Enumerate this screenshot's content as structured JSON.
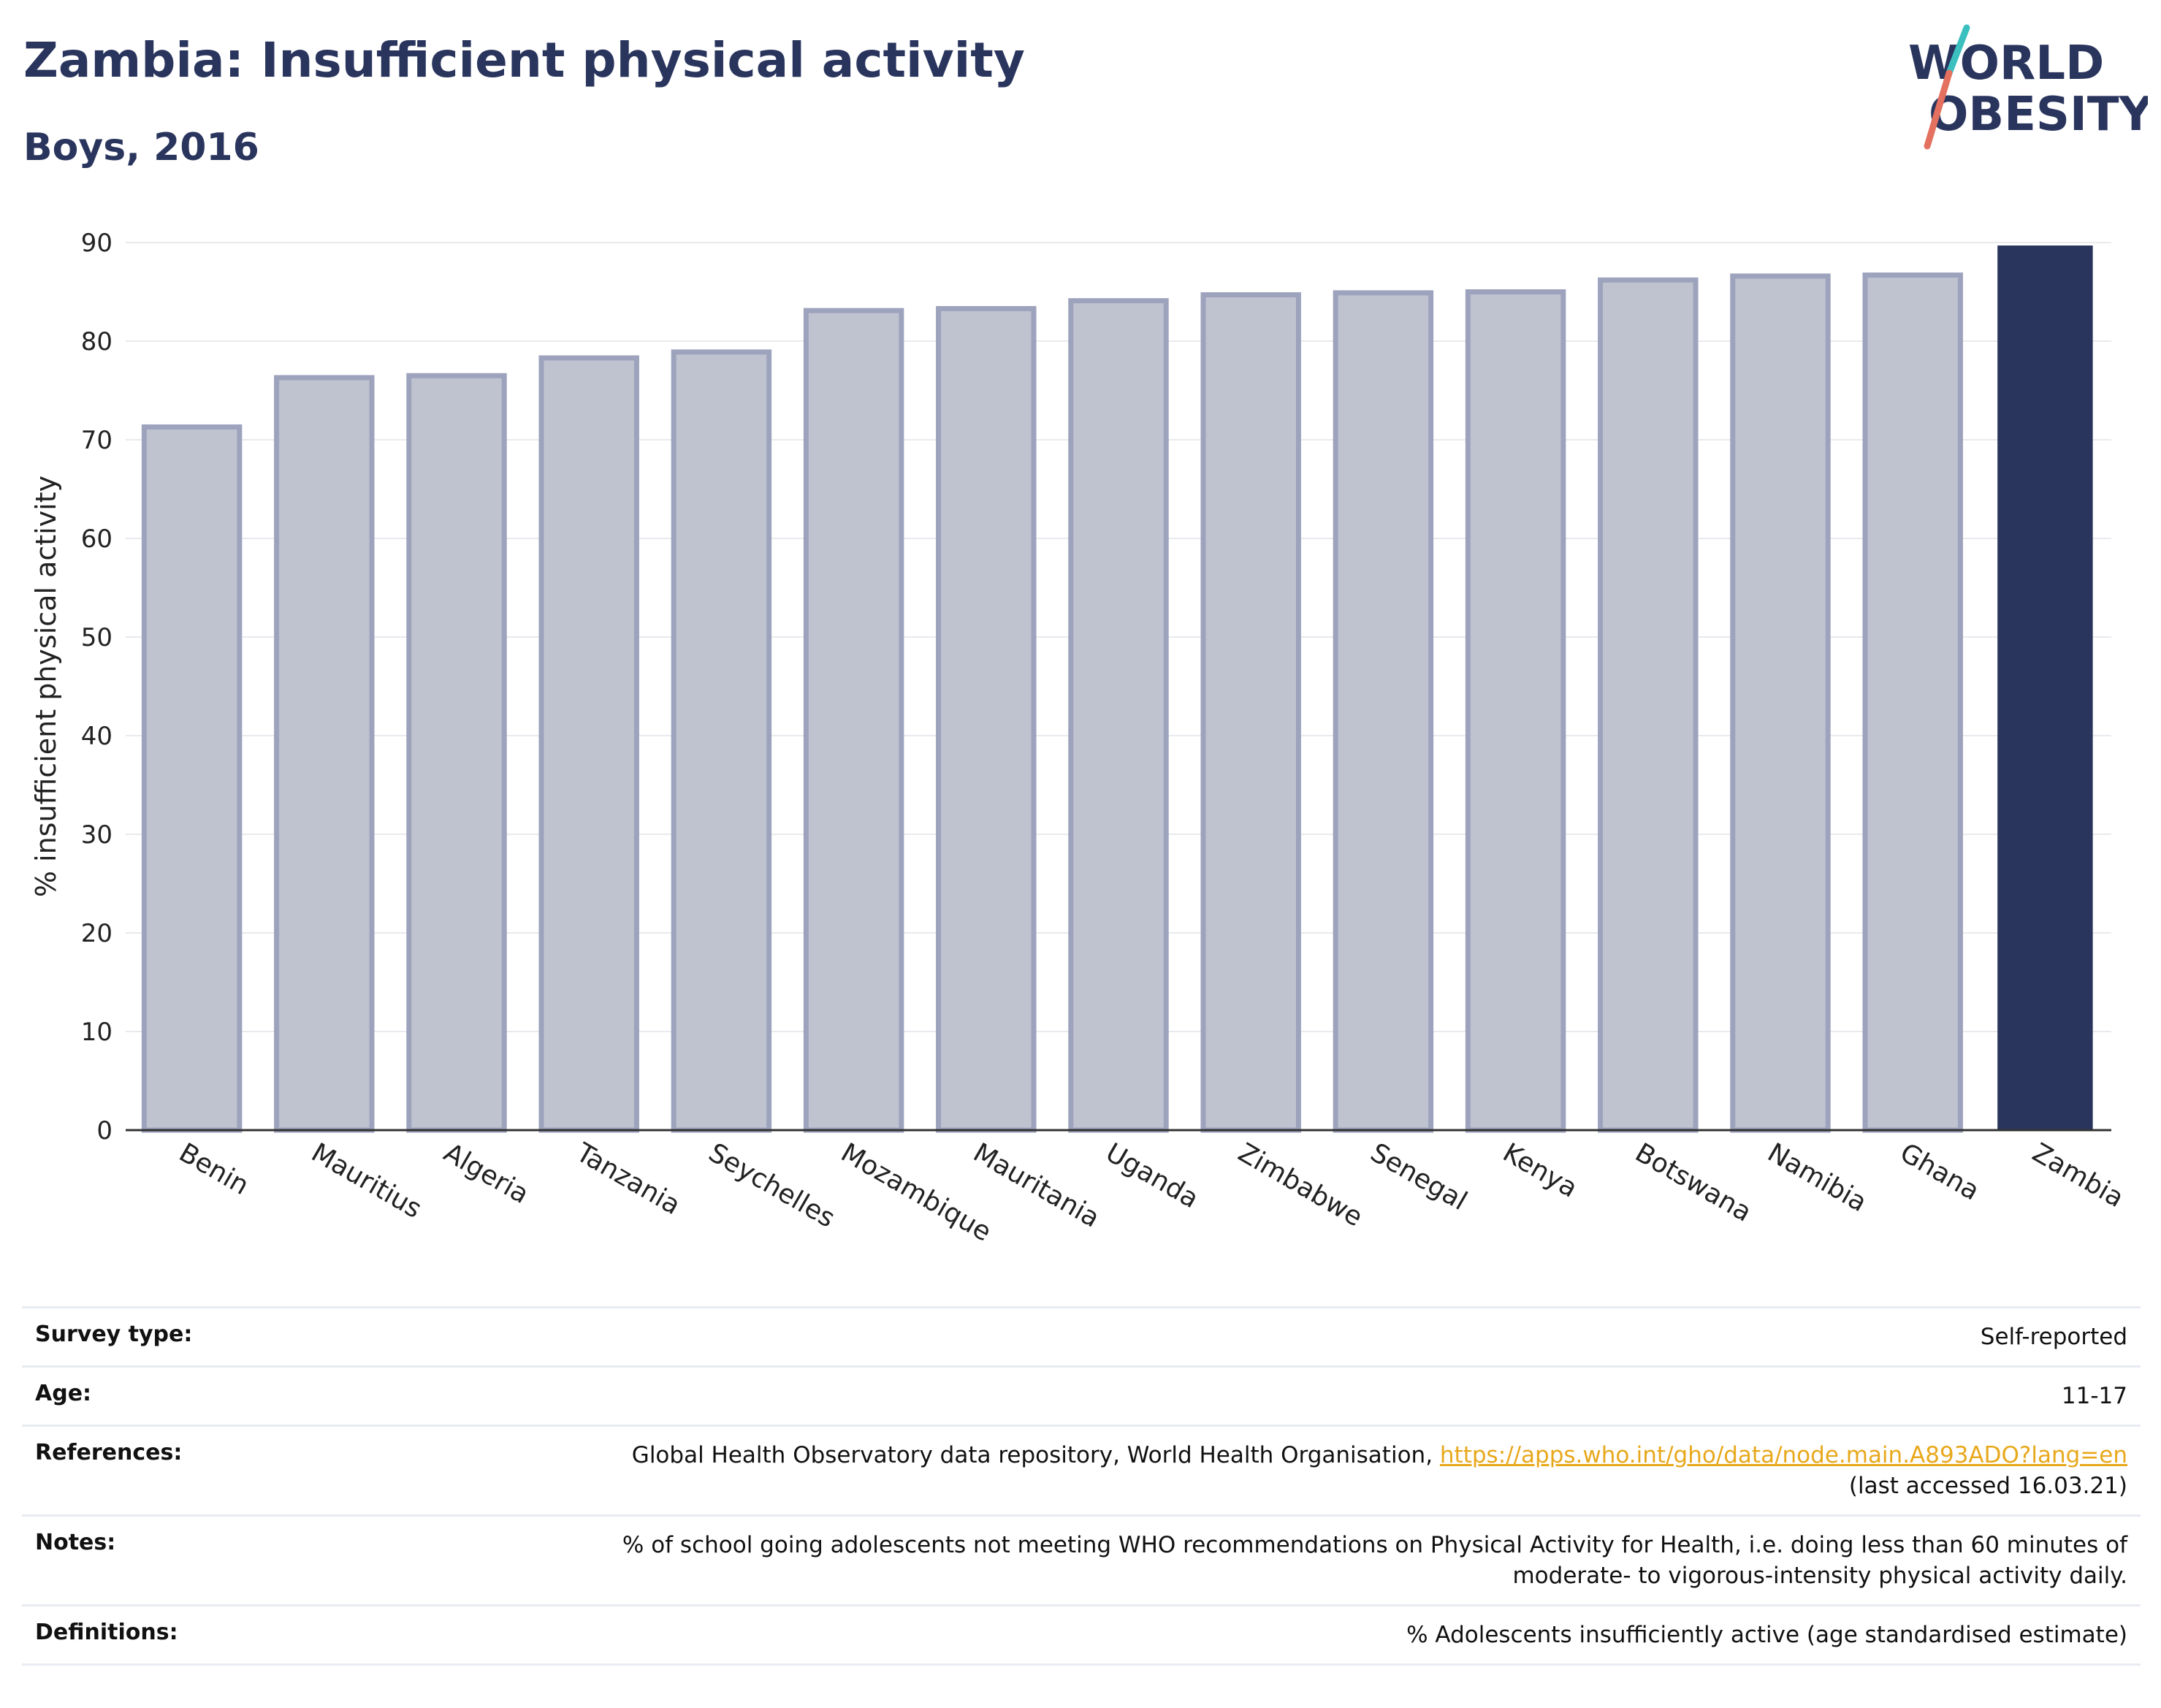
{
  "header": {
    "title": "Zambia: Insufficient physical activity",
    "subtitle": "Boys, 2016"
  },
  "logo": {
    "line1": "WORLD",
    "line2": "OBESITY"
  },
  "colors": {
    "primary": "#2a355e",
    "bar_fill": "#bfc3d0",
    "bar_stroke": "#9ea3bd",
    "highlight": "#2a355e",
    "link": "#e8a81c",
    "logo_teal": "#3bbfbf",
    "logo_coral": "#e4705f"
  },
  "chart_data": {
    "type": "bar",
    "title": "Zambia: Insufficient physical activity",
    "subtitle": "Boys, 2016",
    "xlabel": "",
    "ylabel": "% insufficient physical activity",
    "ylim": [
      0,
      90
    ],
    "yticks": [
      0,
      10,
      20,
      30,
      40,
      50,
      60,
      70,
      80,
      90
    ],
    "categories": [
      "Benin",
      "Mauritius",
      "Algeria",
      "Tanzania",
      "Seychelles",
      "Mozambique",
      "Mauritania",
      "Uganda",
      "Zimbabwe",
      "Senegal",
      "Kenya",
      "Botswana",
      "Namibia",
      "Ghana",
      "Zambia"
    ],
    "values": [
      71.3,
      76.3,
      76.5,
      78.3,
      78.9,
      83.1,
      83.3,
      84.1,
      84.7,
      84.9,
      85.0,
      86.2,
      86.6,
      86.7,
      89.7
    ],
    "highlight": "Zambia",
    "grid": true
  },
  "meta": {
    "rows": [
      {
        "label": "Survey type:",
        "value": "Self-reported"
      },
      {
        "label": "Age:",
        "value": "11-17"
      },
      {
        "label": "References:",
        "value": "Global Health Observatory data repository, World Health Organisation, ",
        "link": "https://apps.who.int/gho/data/node.main.A893ADO?lang=en",
        "value2": "(last accessed 16.03.21)"
      },
      {
        "label": "Notes:",
        "value": "% of school going adolescents not meeting WHO recommendations on Physical Activity for Health, i.e. doing less than 60 minutes of",
        "value2": "moderate- to vigorous-intensity physical activity daily."
      },
      {
        "label": "Definitions:",
        "value": "% Adolescents insufficiently active (age standardised estimate)"
      }
    ]
  }
}
